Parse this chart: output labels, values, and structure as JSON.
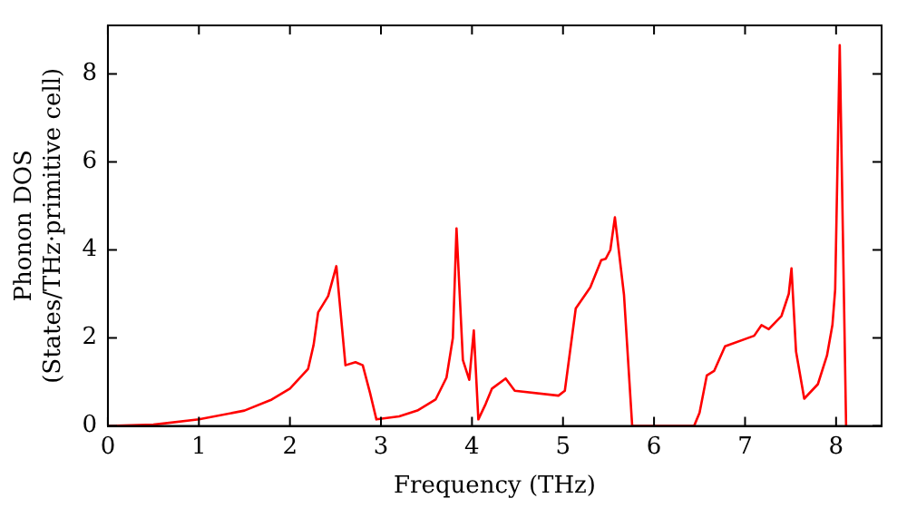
{
  "chart_data": {
    "type": "line",
    "xlabel": "Frequency (THz)",
    "ylabel": "Phonon DOS\n(States/THz·primitive cell)",
    "xlim": [
      0,
      8.5
    ],
    "ylim": [
      0,
      9.1
    ],
    "xticks": [
      0,
      1,
      2,
      3,
      4,
      5,
      6,
      7,
      8
    ],
    "yticks": [
      0,
      2,
      4,
      6,
      8
    ],
    "grid": false,
    "legend": false,
    "marker": "none",
    "line_style": "solid",
    "series": [
      {
        "color": "#ff0000",
        "x": [
          0,
          0.5,
          1,
          1.5,
          1.8,
          2,
          2.2,
          2.26,
          2.31,
          2.42,
          2.51,
          2.61,
          2.72,
          2.8,
          2.88,
          2.95,
          3.2,
          3.4,
          3.6,
          3.72,
          3.79,
          3.83,
          3.9,
          3.97,
          4.02,
          4.07,
          4.15,
          4.22,
          4.37,
          4.47,
          4.95,
          5.02,
          5.14,
          5.3,
          5.42,
          5.47,
          5.52,
          5.57,
          5.67,
          5.76,
          6.44,
          6.5,
          6.58,
          6.66,
          6.78,
          7.1,
          7.18,
          7.26,
          7.4,
          7.48,
          7.51,
          7.56,
          7.65,
          7.8,
          7.9,
          7.96,
          7.99,
          8.04,
          8.11
        ],
        "values": [
          0,
          0.03,
          0.15,
          0.35,
          0.6,
          0.85,
          1.3,
          1.84,
          2.58,
          2.95,
          3.63,
          1.38,
          1.45,
          1.38,
          0.75,
          0.15,
          0.22,
          0.35,
          0.6,
          1.1,
          2.0,
          4.49,
          1.5,
          1.05,
          2.17,
          0.15,
          0.5,
          0.85,
          1.08,
          0.8,
          0.69,
          0.8,
          2.67,
          3.15,
          3.77,
          3.8,
          4.0,
          4.74,
          2.98,
          0,
          0,
          0.3,
          1.15,
          1.25,
          1.81,
          2.05,
          2.29,
          2.2,
          2.5,
          3.0,
          3.58,
          1.69,
          0.62,
          0.95,
          1.6,
          2.3,
          3.1,
          8.65,
          0
        ]
      }
    ]
  }
}
